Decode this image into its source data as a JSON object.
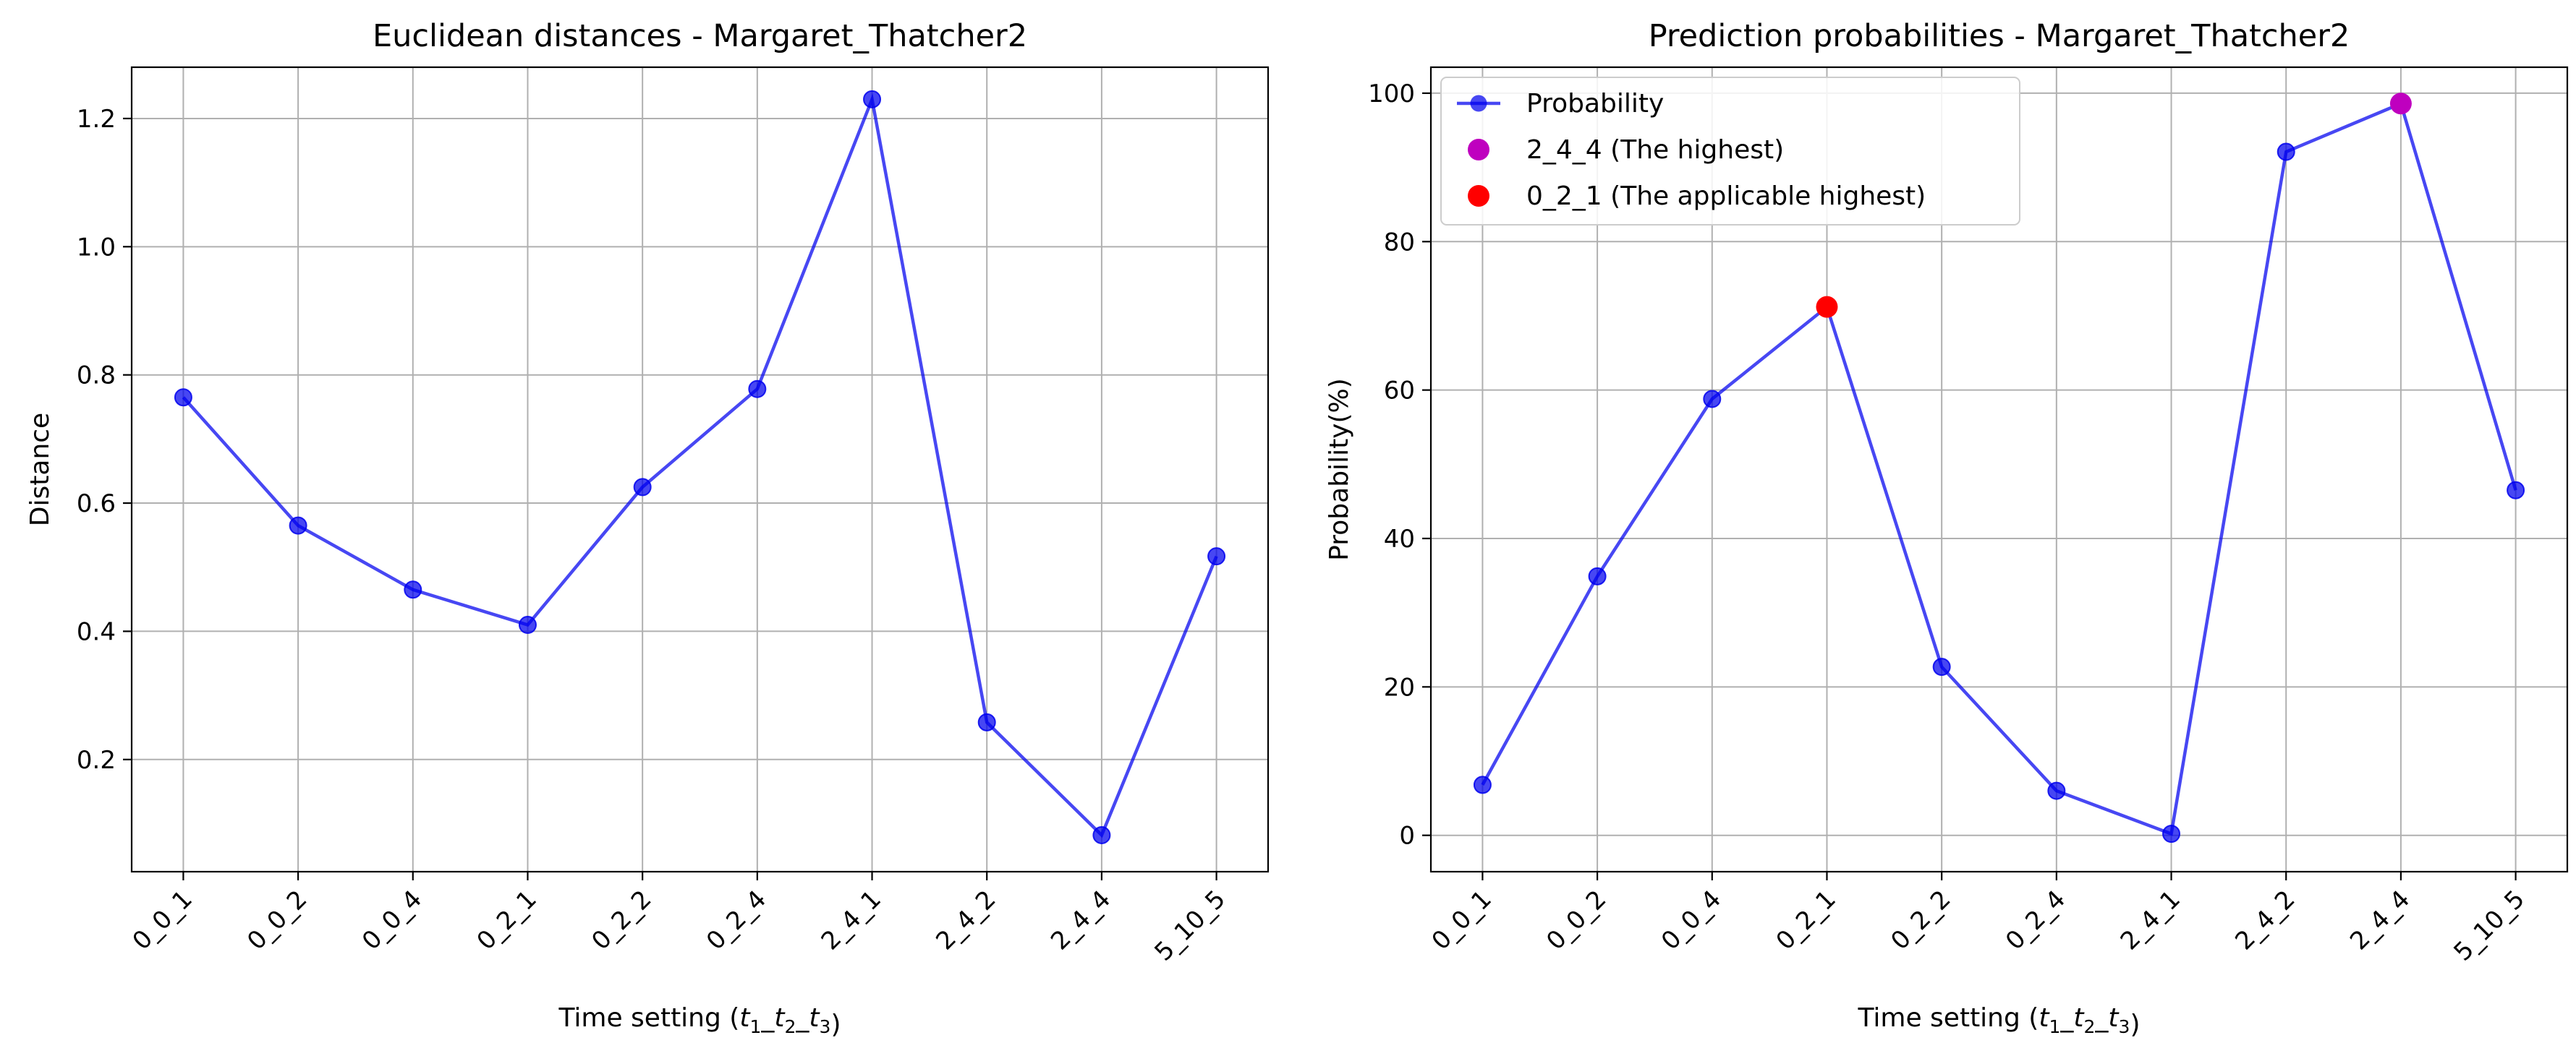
{
  "chart_data": [
    {
      "type": "line",
      "title": "Euclidean distances - Margaret_Thatcher2",
      "xlabel_prefix": "Time setting (",
      "xlabel_suffix": ")",
      "xlabel_vars": [
        {
          "base": "t",
          "sub": "1"
        },
        {
          "base": "t",
          "sub": "2"
        },
        {
          "base": "t",
          "sub": "3"
        }
      ],
      "xlabel_sep": "_",
      "ylabel": "Distance",
      "categories": [
        "0_0_1",
        "0_0_2",
        "0_0_4",
        "0_2_1",
        "0_2_2",
        "0_2_4",
        "2_4_1",
        "2_4_2",
        "2_4_4",
        "5_10_5"
      ],
      "ylim": [
        0.025,
        1.28
      ],
      "yticks": [
        0.2,
        0.4,
        0.6,
        0.8,
        1.0,
        1.2
      ],
      "ytick_labels": [
        "0.2",
        "0.4",
        "0.6",
        "0.8",
        "1.0",
        "1.2"
      ],
      "grid": true,
      "series": [
        {
          "values": [
            0.765,
            0.565,
            0.465,
            0.41,
            0.625,
            0.778,
            1.23,
            0.258,
            0.082,
            0.517
          ],
          "color": "#0000ee"
        }
      ]
    },
    {
      "type": "line",
      "title": "Prediction probabilities - Margaret_Thatcher2",
      "xlabel_prefix": "Time setting (",
      "xlabel_suffix": ")",
      "xlabel_vars": [
        {
          "base": "t",
          "sub": "1"
        },
        {
          "base": "t",
          "sub": "2"
        },
        {
          "base": "t",
          "sub": "3"
        }
      ],
      "xlabel_sep": "_",
      "ylabel": "Probability(%)",
      "categories": [
        "0_0_1",
        "0_0_2",
        "0_0_4",
        "0_2_1",
        "0_2_2",
        "0_2_4",
        "2_4_1",
        "2_4_2",
        "2_4_4",
        "5_10_5"
      ],
      "ylim": [
        -4.9,
        103.5
      ],
      "yticks": [
        0,
        20,
        40,
        60,
        80,
        100
      ],
      "ytick_labels": [
        "0",
        "20",
        "40",
        "60",
        "80",
        "100"
      ],
      "grid": true,
      "legend_position": "top-left",
      "series": [
        {
          "name": "Probability",
          "values": [
            6.8,
            34.9,
            58.8,
            71.2,
            22.7,
            6.0,
            0.2,
            92.1,
            98.6,
            46.5
          ],
          "color": "#0000ee"
        }
      ],
      "highlights": [
        {
          "name": "2_4_4 (The highest)",
          "category": "2_4_4",
          "value": 98.6,
          "color": "#bf00bf"
        },
        {
          "name": "0_2_1 (The applicable highest)",
          "category": "0_2_1",
          "value": 71.2,
          "color": "#ff0000"
        }
      ]
    }
  ]
}
